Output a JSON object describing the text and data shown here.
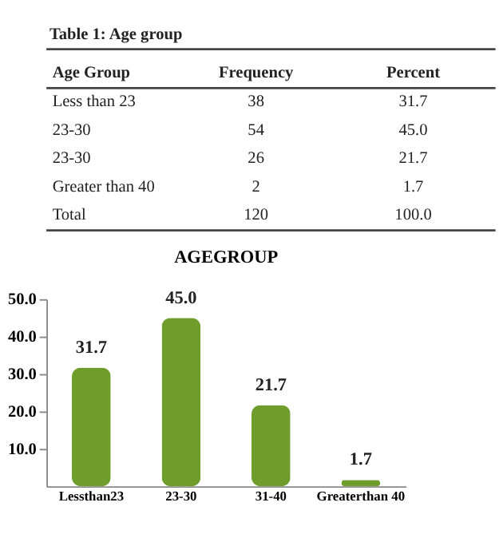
{
  "chart_data": {
    "type": "bar",
    "title": "AGEGROUP",
    "categories": [
      "Lessthan23",
      "23-30",
      "31-40",
      "Greaterthan 40"
    ],
    "series": [
      {
        "color": "#6e9d2c",
        "values": [
          31.7,
          45.0,
          21.7,
          1.7
        ],
        "value_labels": [
          "31.7",
          "45.0",
          "21.7",
          "1.7"
        ]
      }
    ],
    "ylim": [
      0,
      50
    ],
    "yticks": [
      {
        "value": 10,
        "label": "10.0"
      },
      {
        "value": 20,
        "label": "20.0"
      },
      {
        "value": 30,
        "label": "30.0"
      },
      {
        "value": 40,
        "label": "40.0"
      },
      {
        "value": 50,
        "label": "50.0"
      }
    ],
    "grid": false,
    "legend": false,
    "annotations": [
      "Table 1: Age group",
      "Age Group",
      "Frequency",
      "Percent",
      "Less than 23",
      "38",
      "31.7",
      "23-30",
      "54",
      "45.0",
      "23-30",
      "26",
      "21.7",
      "Greater than 40",
      "2",
      "1.7",
      "Total",
      "120",
      "100.0"
    ]
  }
}
